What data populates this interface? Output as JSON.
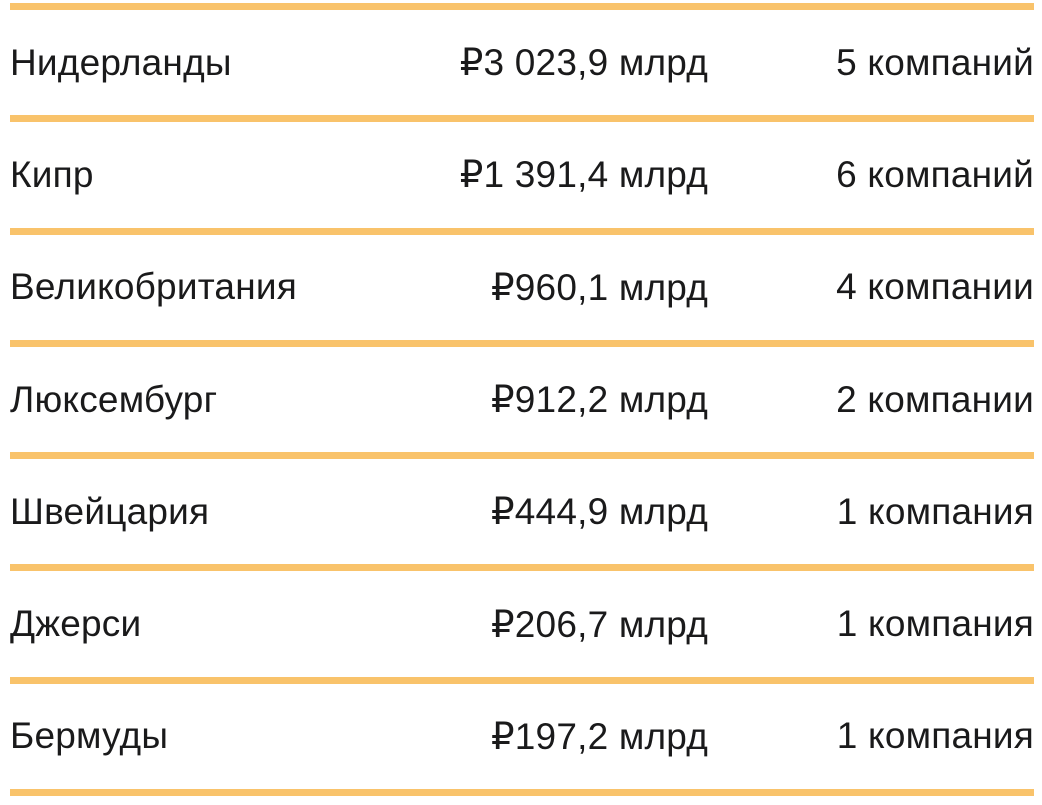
{
  "theme": {
    "divider_color": "#f9c36b",
    "text_color": "#1a1a1b",
    "background_color": "#ffffff"
  },
  "chart_data": {
    "type": "table",
    "columns": [
      "country",
      "value",
      "companies"
    ],
    "currency": "RUB",
    "unit": "млрд",
    "rows": [
      {
        "country": "Нидерланды",
        "value": "₽3 023,9 млрд",
        "value_numeric": 3023.9,
        "companies": "5 компаний",
        "companies_count": 5
      },
      {
        "country": "Кипр",
        "value": "₽1 391,4 млрд",
        "value_numeric": 1391.4,
        "companies": "6 компаний",
        "companies_count": 6
      },
      {
        "country": "Великобритания",
        "value": "₽960,1 млрд",
        "value_numeric": 960.1,
        "companies": "4 компании",
        "companies_count": 4
      },
      {
        "country": "Люксембург",
        "value": "₽912,2 млрд",
        "value_numeric": 912.2,
        "companies": "2 компании",
        "companies_count": 2
      },
      {
        "country": "Швейцария",
        "value": "₽444,9 млрд",
        "value_numeric": 444.9,
        "companies": "1 компания",
        "companies_count": 1
      },
      {
        "country": "Джерси",
        "value": "₽206,7 млрд",
        "value_numeric": 206.7,
        "companies": "1 компания",
        "companies_count": 1
      },
      {
        "country": "Бермуды",
        "value": "₽197,2 млрд",
        "value_numeric": 197.2,
        "companies": "1 компания",
        "companies_count": 1
      }
    ]
  }
}
